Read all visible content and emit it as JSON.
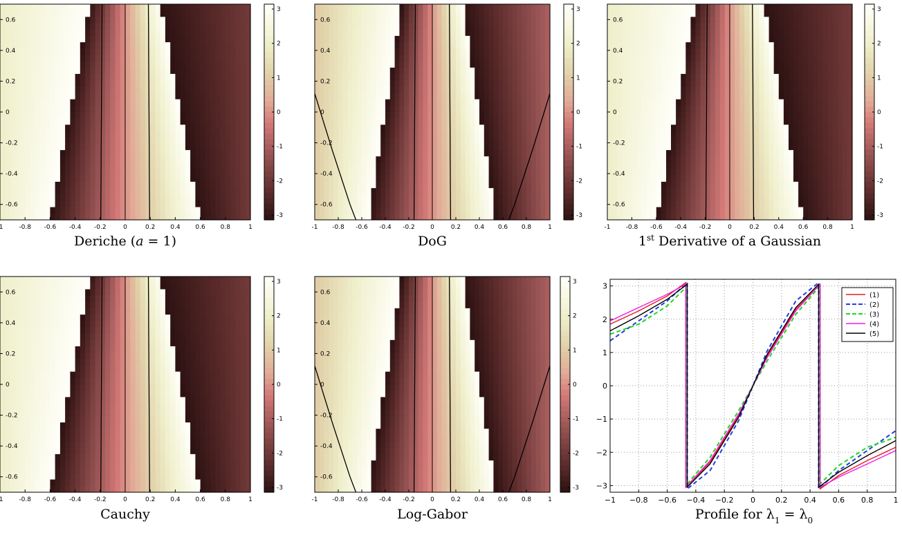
{
  "chart_data": [
    {
      "type": "heatmap",
      "caption_parts": [
        {
          "t": "Deriche (",
          "s": "n"
        },
        {
          "t": "a",
          "s": "i"
        },
        {
          "t": " = 1)",
          "s": "n"
        }
      ],
      "variant": "narrow",
      "xlim": [
        -1,
        1
      ],
      "ylim": [
        -0.7,
        0.7
      ],
      "xticks": [
        -1,
        -0.8,
        -0.6,
        -0.4,
        -0.2,
        0,
        0.2,
        0.4,
        0.6,
        0.8,
        1
      ],
      "xtick_labels": [
        "-1",
        "-0.8",
        "-0.6",
        "-0.4",
        "-0.2",
        "0",
        "0.2",
        "0.4",
        "0.6",
        "0.8",
        "1"
      ],
      "yticks": [
        0.6,
        0.4,
        0.2,
        0,
        -0.2,
        -0.4,
        -0.6
      ],
      "ytick_labels": [
        "0.6",
        "0.4",
        "0.2",
        "0",
        "-0.2",
        "-0.4",
        "-0.6"
      ],
      "colorbar": {
        "range": [
          -3.1416,
          3.1416
        ],
        "ticks": [
          3,
          2,
          1,
          0,
          -1,
          -2,
          -3
        ],
        "tick_labels": [
          "3",
          "2",
          "1",
          "0",
          "-1",
          "-2",
          "-3"
        ]
      }
    },
    {
      "type": "heatmap",
      "caption_parts": [
        {
          "t": "DoG",
          "s": "n"
        }
      ],
      "variant": "wide",
      "xlim": [
        -1,
        1
      ],
      "ylim": [
        -0.7,
        0.7
      ],
      "xticks": [
        -1,
        -0.8,
        -0.6,
        -0.4,
        -0.2,
        0,
        0.2,
        0.4,
        0.6,
        0.8,
        1
      ],
      "xtick_labels": [
        "-1",
        "-0.8",
        "-0.6",
        "-0.4",
        "-0.2",
        "0",
        "0.2",
        "0.4",
        "0.6",
        "0.8",
        "1"
      ],
      "yticks": [
        0.6,
        0.4,
        0.2,
        0,
        -0.2,
        -0.4,
        -0.6
      ],
      "ytick_labels": [
        "0.6",
        "0.4",
        "0.2",
        "0",
        "-0.2",
        "-0.4",
        "-0.6"
      ],
      "colorbar": {
        "range": [
          -3.1416,
          3.1416
        ],
        "ticks": [
          3,
          2,
          1,
          0,
          -1,
          -2,
          -3
        ],
        "tick_labels": [
          "3",
          "2",
          "1",
          "0",
          "-1",
          "-2",
          "-3"
        ]
      }
    },
    {
      "type": "heatmap",
      "caption_parts": [
        {
          "t": "1",
          "s": "n"
        },
        {
          "t": "st",
          "s": "sup"
        },
        {
          "t": " Derivative of a Gaussian",
          "s": "n"
        }
      ],
      "variant": "narrow",
      "xlim": [
        -1,
        1
      ],
      "ylim": [
        -0.7,
        0.7
      ],
      "xticks": [
        -1,
        -0.8,
        -0.6,
        -0.4,
        -0.2,
        0,
        0.2,
        0.4,
        0.6,
        0.8,
        1
      ],
      "xtick_labels": [
        "-1",
        "-0.8",
        "-0.6",
        "-0.4",
        "-0.2",
        "0",
        "0.2",
        "0.4",
        "0.6",
        "0.8",
        "1"
      ],
      "yticks": [
        0.6,
        0.4,
        0.2,
        0,
        -0.2,
        -0.4,
        -0.6
      ],
      "ytick_labels": [
        "0.6",
        "0.4",
        "0.2",
        "0",
        "-0.2",
        "-0.4",
        "-0.6"
      ],
      "colorbar": {
        "range": [
          -3.1416,
          3.1416
        ],
        "ticks": [
          3,
          2,
          1,
          0,
          -1,
          -2,
          -3
        ],
        "tick_labels": [
          "3",
          "2",
          "1",
          "0",
          "-1",
          "-2",
          "-3"
        ]
      }
    },
    {
      "type": "heatmap",
      "caption_parts": [
        {
          "t": "Cauchy",
          "s": "n"
        }
      ],
      "variant": "narrow",
      "xlim": [
        -1,
        1
      ],
      "ylim": [
        -0.7,
        0.7
      ],
      "xticks": [
        -1,
        -0.8,
        -0.6,
        -0.4,
        -0.2,
        0,
        0.2,
        0.4,
        0.6,
        0.8,
        1
      ],
      "xtick_labels": [
        "-1",
        "-0.8",
        "-0.6",
        "-0.4",
        "-0.2",
        "0",
        "0.2",
        "0.4",
        "0.6",
        "0.8",
        "1"
      ],
      "yticks": [
        0.6,
        0.4,
        0.2,
        0,
        -0.2,
        -0.4,
        -0.6
      ],
      "ytick_labels": [
        "0.6",
        "0.4",
        "0.2",
        "0",
        "-0.2",
        "-0.4",
        "-0.6"
      ],
      "colorbar": {
        "range": [
          -3.1416,
          3.1416
        ],
        "ticks": [
          3,
          2,
          1,
          0,
          -1,
          -2,
          -3
        ],
        "tick_labels": [
          "3",
          "2",
          "1",
          "0",
          "-1",
          "-2",
          "-3"
        ]
      }
    },
    {
      "type": "heatmap",
      "caption_parts": [
        {
          "t": "Log-Gabor",
          "s": "n"
        }
      ],
      "variant": "wide",
      "xlim": [
        -1,
        1
      ],
      "ylim": [
        -0.7,
        0.7
      ],
      "xticks": [
        -1,
        -0.8,
        -0.6,
        -0.4,
        -0.2,
        0,
        0.2,
        0.4,
        0.6,
        0.8,
        1
      ],
      "xtick_labels": [
        "-1",
        "-0.8",
        "-0.6",
        "-0.4",
        "-0.2",
        "0",
        "0.2",
        "0.4",
        "0.6",
        "0.8",
        "1"
      ],
      "yticks": [
        0.6,
        0.4,
        0.2,
        0,
        -0.2,
        -0.4,
        -0.6
      ],
      "ytick_labels": [
        "0.6",
        "0.4",
        "0.2",
        "0",
        "-0.2",
        "-0.4",
        "-0.6"
      ],
      "colorbar": {
        "range": [
          -3.1416,
          3.1416
        ],
        "ticks": [
          3,
          2,
          1,
          0,
          -1,
          -2,
          -3
        ],
        "tick_labels": [
          "3",
          "2",
          "1",
          "0",
          "-1",
          "-2",
          "-3"
        ]
      }
    },
    {
      "type": "line",
      "caption_parts": [
        {
          "t": "Profile for ",
          "s": "n"
        },
        {
          "t": "λ",
          "s": "n"
        },
        {
          "t": "1",
          "s": "sub"
        },
        {
          "t": " = ",
          "s": "n"
        },
        {
          "t": "λ",
          "s": "n"
        },
        {
          "t": "0",
          "s": "sub"
        }
      ],
      "xlim": [
        -1,
        1
      ],
      "ylim": [
        -3.2,
        3.2
      ],
      "xticks": [
        -1,
        -0.8,
        -0.6,
        -0.4,
        -0.2,
        0,
        0.2,
        0.4,
        0.6,
        0.8,
        1
      ],
      "xtick_labels": [
        "−1",
        "−0.8",
        "−0.6",
        "−0.4",
        "−0.2",
        "0",
        "0.2",
        "0.4",
        "0.6",
        "0.8",
        "1"
      ],
      "yticks": [
        3,
        2,
        1,
        0,
        -1,
        -2,
        -3
      ],
      "ytick_labels": [
        "3",
        "2",
        "1",
        "0",
        "−1",
        "−2",
        "−3"
      ],
      "grid": true,
      "legend_position": "top-right",
      "series": [
        {
          "name": "(1)",
          "color": "#e8182b",
          "dash": "solid",
          "x": [
            -1,
            -0.8,
            -0.6,
            -0.47,
            -0.47,
            -0.3,
            -0.1,
            0,
            0.1,
            0.3,
            0.47,
            0.47,
            0.6,
            0.8,
            1
          ],
          "y": [
            1.85,
            2.25,
            2.7,
            3.1,
            -3.05,
            -2.3,
            -0.9,
            0,
            0.9,
            2.3,
            3.05,
            -3.1,
            -2.7,
            -2.25,
            -1.85
          ]
        },
        {
          "name": "(2)",
          "color": "#1f3fe0",
          "dash": "dashed",
          "x": [
            -1,
            -0.8,
            -0.6,
            -0.46,
            -0.46,
            -0.3,
            -0.1,
            0,
            0.1,
            0.3,
            0.46,
            0.46,
            0.6,
            0.8,
            1
          ],
          "y": [
            1.35,
            1.95,
            2.55,
            3.1,
            -3.1,
            -2.55,
            -1.05,
            0,
            1.05,
            2.55,
            3.1,
            -3.1,
            -2.55,
            -1.95,
            -1.35
          ]
        },
        {
          "name": "(3)",
          "color": "#1fd61f",
          "dash": "dashed",
          "x": [
            -1,
            -0.8,
            -0.6,
            -0.47,
            -0.47,
            -0.3,
            -0.1,
            0,
            0.1,
            0.3,
            0.47,
            0.47,
            0.6,
            0.8,
            1
          ],
          "y": [
            1.55,
            1.85,
            2.4,
            2.95,
            -3.0,
            -2.15,
            -0.75,
            0,
            0.75,
            2.15,
            3.0,
            -2.95,
            -2.4,
            -1.85,
            -1.55
          ]
        },
        {
          "name": "(4)",
          "color": "#ee1fdd",
          "dash": "solid",
          "x": [
            -1,
            -0.8,
            -0.6,
            -0.47,
            -0.47,
            -0.3,
            -0.1,
            0,
            0.1,
            0.3,
            0.47,
            0.47,
            0.6,
            0.8,
            1
          ],
          "y": [
            1.95,
            2.35,
            2.75,
            3.05,
            -3.05,
            -2.25,
            -0.85,
            0,
            0.85,
            2.25,
            3.05,
            -3.05,
            -2.75,
            -2.35,
            -1.95
          ]
        },
        {
          "name": "(5)",
          "color": "#000000",
          "dash": "solid",
          "x": [
            -1,
            -0.8,
            -0.6,
            -0.46,
            -0.46,
            -0.3,
            -0.1,
            0,
            0.1,
            0.3,
            0.46,
            0.46,
            0.6,
            0.8,
            1
          ],
          "y": [
            1.65,
            2.1,
            2.6,
            3.05,
            -3.05,
            -2.35,
            -0.95,
            0,
            0.95,
            2.35,
            3.05,
            -3.05,
            -2.6,
            -2.1,
            -1.65
          ]
        }
      ]
    }
  ]
}
